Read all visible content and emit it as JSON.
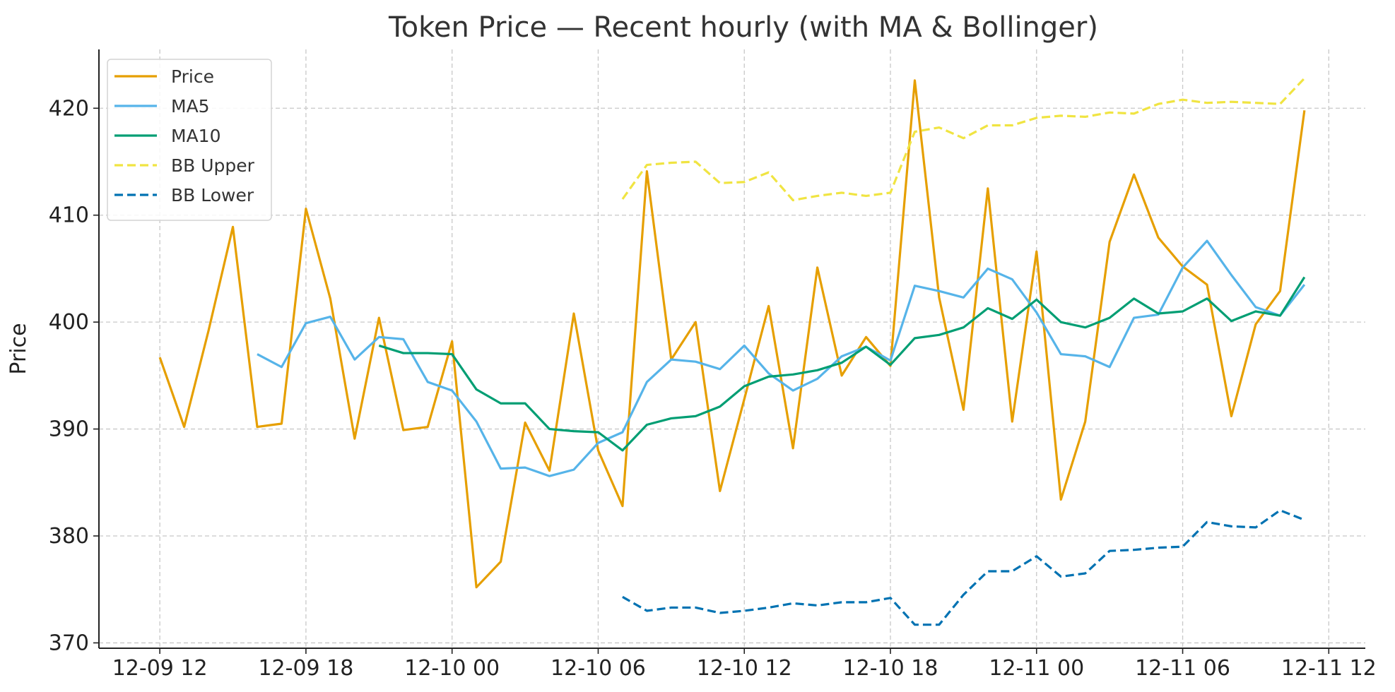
{
  "chart_data": {
    "type": "line",
    "title": "Token Price — Recent hourly (with MA & Bollinger)",
    "xlabel": "",
    "ylabel": "Price",
    "ylim": [
      369.5,
      425.5
    ],
    "xlim": [
      -2.5,
      49.5
    ],
    "grid": true,
    "legend_position": "top-left",
    "x_ticks": [
      {
        "pos": 0,
        "label": "12-09 12"
      },
      {
        "pos": 6,
        "label": "12-09 18"
      },
      {
        "pos": 12,
        "label": "12-10 00"
      },
      {
        "pos": 18,
        "label": "12-10 06"
      },
      {
        "pos": 24,
        "label": "12-10 12"
      },
      {
        "pos": 30,
        "label": "12-10 18"
      },
      {
        "pos": 36,
        "label": "12-11 00"
      },
      {
        "pos": 42,
        "label": "12-11 06"
      },
      {
        "pos": 48,
        "label": "12-11 12"
      }
    ],
    "y_ticks": [
      {
        "value": 370,
        "label": "370"
      },
      {
        "value": 380,
        "label": "380"
      },
      {
        "value": 390,
        "label": "390"
      },
      {
        "value": 400,
        "label": "400"
      },
      {
        "value": 410,
        "label": "410"
      },
      {
        "value": 420,
        "label": "420"
      }
    ],
    "series": [
      {
        "name": "Price",
        "color": "#E69F00",
        "dash": "solid",
        "start": 0,
        "values": [
          396.7,
          390.2,
          399.2,
          408.9,
          390.2,
          390.5,
          410.6,
          402.2,
          389.1,
          400.4,
          389.9,
          390.2,
          398.2,
          375.2,
          377.6,
          390.6,
          386.1,
          400.8,
          388.0,
          382.8,
          414.1,
          396.5,
          400.0,
          384.2,
          392.8,
          401.5,
          388.2,
          405.1,
          395.0,
          398.6,
          395.9,
          422.6,
          402.3,
          391.8,
          412.5,
          390.7,
          406.6,
          383.4,
          390.7,
          407.5,
          413.8,
          407.9,
          405.2,
          403.5,
          391.2,
          399.8,
          402.9,
          419.8
        ]
      },
      {
        "name": "MA5",
        "color": "#56B4E9",
        "dash": "solid",
        "start": 4,
        "values": [
          397.0,
          395.8,
          399.9,
          400.5,
          396.5,
          398.6,
          398.4,
          394.4,
          393.6,
          390.7,
          386.3,
          386.4,
          385.6,
          386.2,
          388.7,
          389.7,
          394.4,
          396.5,
          396.3,
          395.6,
          397.8,
          395.2,
          393.6,
          394.7,
          396.8,
          397.7,
          396.4,
          403.4,
          402.9,
          402.3,
          405.0,
          404.0,
          400.9,
          397.0,
          396.8,
          395.8,
          400.4,
          400.7,
          405.1,
          407.6,
          404.4,
          401.4,
          400.6,
          403.5
        ]
      },
      {
        "name": "MA10",
        "color": "#009E73",
        "dash": "solid",
        "start": 9,
        "values": [
          397.8,
          397.1,
          397.1,
          397.0,
          393.7,
          392.4,
          392.4,
          390.0,
          389.8,
          389.7,
          388.0,
          390.4,
          391.0,
          391.2,
          392.1,
          394.0,
          394.9,
          395.1,
          395.5,
          396.2,
          397.7,
          396.0,
          398.5,
          398.8,
          399.5,
          401.3,
          400.3,
          402.1,
          400.0,
          399.5,
          400.4,
          402.2,
          400.8,
          401.0,
          402.2,
          400.1,
          401.0,
          400.6,
          404.2
        ]
      },
      {
        "name": "BB Upper",
        "color": "#F0E442",
        "dash": "dashed",
        "start": 19,
        "values": [
          411.5,
          414.7,
          414.9,
          415.0,
          413.0,
          413.1,
          414.0,
          411.4,
          411.8,
          412.1,
          411.8,
          412.1,
          417.8,
          418.2,
          417.2,
          418.4,
          418.4,
          419.1,
          419.3,
          419.2,
          419.6,
          419.5,
          420.4,
          420.8,
          420.5,
          420.6,
          420.5,
          420.4,
          422.8
        ]
      },
      {
        "name": "BB Lower",
        "color": "#0072B2",
        "dash": "dashed",
        "start": 19,
        "values": [
          374.3,
          373.0,
          373.3,
          373.3,
          372.8,
          373.0,
          373.3,
          373.7,
          373.5,
          373.8,
          373.8,
          374.2,
          371.7,
          371.7,
          374.5,
          376.7,
          376.7,
          378.1,
          376.2,
          376.5,
          378.6,
          378.7,
          378.9,
          379.0,
          381.3,
          380.9,
          380.8,
          382.4,
          381.5
        ]
      }
    ]
  }
}
